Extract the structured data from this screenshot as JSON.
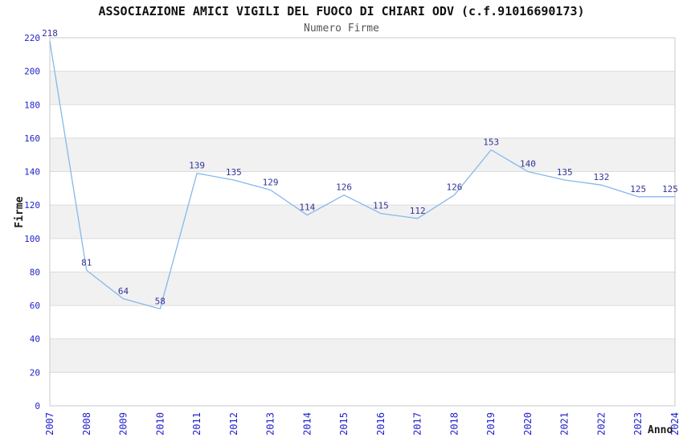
{
  "chart_data": {
    "type": "line",
    "title": "ASSOCIAZIONE AMICI VIGILI DEL FUOCO DI CHIARI ODV (c.f.91016690173)",
    "subtitle": "Numero Firme",
    "xlabel": "Anno",
    "ylabel": "Firme",
    "x": [
      "2007",
      "2008",
      "2009",
      "2010",
      "2011",
      "2012",
      "2013",
      "2014",
      "2015",
      "2016",
      "2017",
      "2018",
      "2019",
      "2020",
      "2021",
      "2022",
      "2023",
      "2024"
    ],
    "values": [
      218,
      81,
      64,
      58,
      139,
      135,
      129,
      114,
      126,
      115,
      112,
      126,
      153,
      140,
      135,
      132,
      125,
      125
    ],
    "ylim": [
      0,
      220
    ],
    "ytick_step": 20,
    "grid": "horizontal",
    "band_fill": "alternating",
    "legend": "none",
    "point_labels": true,
    "colors": {
      "line": "#85b8ec",
      "tick_label": "#2222cc",
      "point_label": "#333399",
      "band": "#f1f1f1",
      "gridline": "#dcdcdc",
      "plot_border": "#c9c9c9",
      "title": "#111111",
      "subtitle": "#555555",
      "axis_title": "#1a1a1a",
      "background": "#ffffff"
    }
  }
}
